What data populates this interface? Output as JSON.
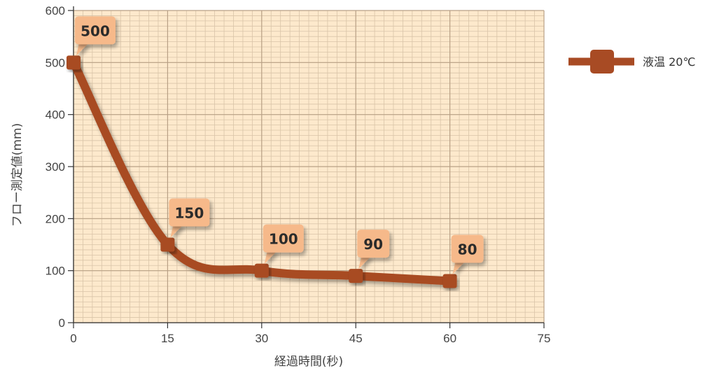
{
  "chart_data": {
    "type": "line",
    "title": "",
    "xlabel": "経過時間(秒)",
    "ylabel": "フロー測定値(mm)",
    "xlim": [
      0,
      75
    ],
    "ylim": [
      0,
      600
    ],
    "x_ticks": [
      0,
      15,
      30,
      45,
      60,
      75
    ],
    "y_ticks": [
      0,
      100,
      200,
      300,
      400,
      500,
      600
    ],
    "grid": true,
    "legend_position": "right",
    "series": [
      {
        "name": "液温 20℃",
        "color": "#a84b24",
        "x": [
          0,
          15,
          30,
          45,
          60
        ],
        "values": [
          500,
          150,
          100,
          90,
          80
        ],
        "data_labels": [
          "500",
          "150",
          "100",
          "90",
          "80"
        ]
      }
    ]
  },
  "colors": {
    "plot_background": "#fde9cc",
    "grid_major": "#b9a186",
    "grid_minor": "#d9c4a8",
    "label_box": "#f6b98a",
    "line": "#a84b24"
  }
}
